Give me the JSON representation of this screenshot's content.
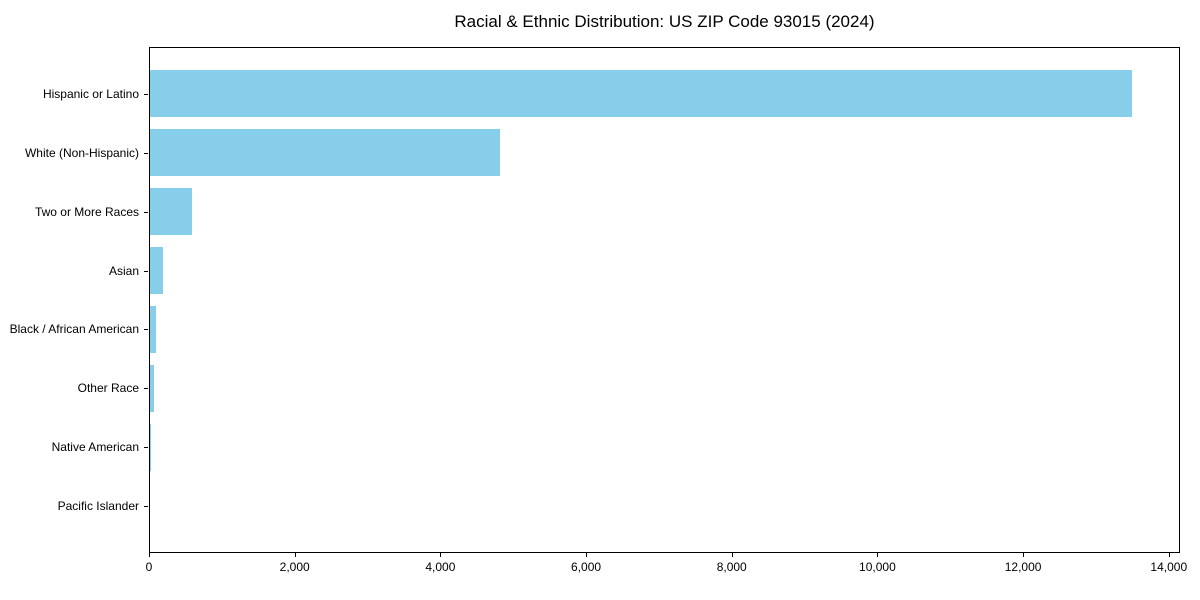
{
  "chart_data": {
    "type": "bar",
    "orientation": "horizontal",
    "title": "Racial & Ethnic Distribution: US ZIP Code 93015 (2024)",
    "categories": [
      "Hispanic or Latino",
      "White (Non-Hispanic)",
      "Two or More Races",
      "Asian",
      "Black / African American",
      "Other Race",
      "Native American",
      "Pacific Islander"
    ],
    "values": [
      13480,
      4810,
      570,
      185,
      80,
      50,
      12,
      4
    ],
    "xlabel": "",
    "ylabel": "",
    "xlim": [
      0,
      14154
    ],
    "xticks": [
      0,
      2000,
      4000,
      6000,
      8000,
      10000,
      12000,
      14000
    ],
    "bar_color": "#87CEEB",
    "spine_color": "#000000",
    "grid": false,
    "legend_position": "none"
  }
}
